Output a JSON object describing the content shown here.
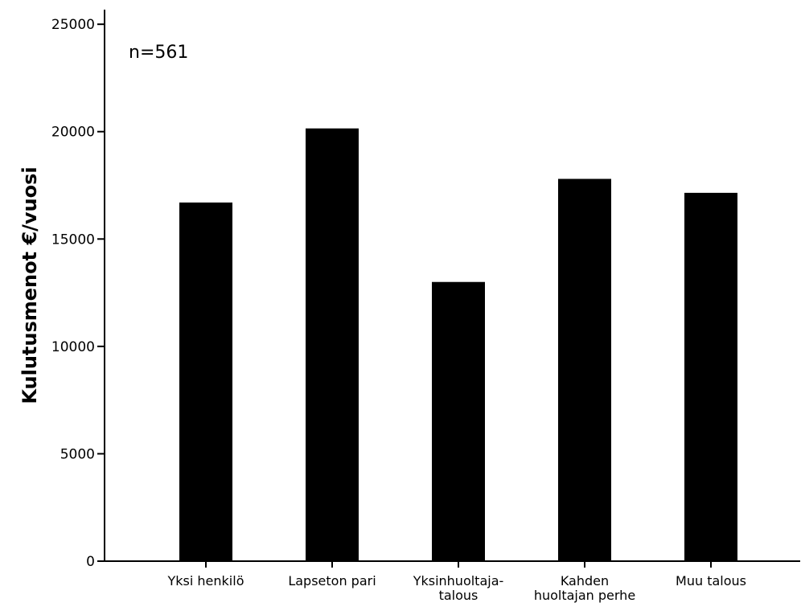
{
  "chart_data": {
    "type": "bar",
    "categories": [
      "Yksi henkilö",
      "Lapseton pari",
      "Yksinhuoltaja-\ntalous",
      "Kahden\nhuoltajan perhe",
      "Muu talous"
    ],
    "values": [
      16700,
      20150,
      13000,
      17800,
      17150
    ],
    "ylabel": "Kulutusmenot €/vuosi",
    "xlabel": "",
    "ylim": [
      0,
      25000
    ],
    "yticks": [
      0,
      5000,
      10000,
      15000,
      20000,
      25000
    ],
    "annotation": "n=561",
    "grid": false,
    "bar_color": "#000000"
  }
}
